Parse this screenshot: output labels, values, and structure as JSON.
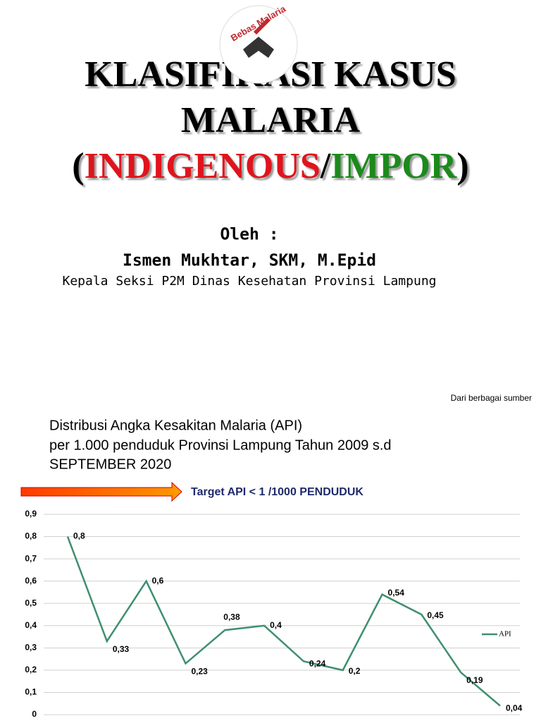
{
  "header": {
    "logo_text": "Bebas Malaria",
    "title_line1": "KLASIFIKASI KASUS",
    "title_line2": "MALARIA",
    "title_open": "(",
    "title_indigenous": "INDIGENOUS",
    "title_slash": "/",
    "title_impor": "IMPOR",
    "title_close": ")",
    "by": "Oleh :",
    "author": "Ismen Mukhtar, SKM, M.Epid",
    "position": "Kepala Seksi P2M Dinas Kesehatan Provinsi Lampung",
    "source": "Dari berbagai sumber"
  },
  "chart_data": {
    "type": "line",
    "title": [
      "Distribusi Angka Kesakitan Malaria (API)",
      "per 1.000 penduduk Provinsi Lampung Tahun 2009 s.d",
      "SEPTEMBER 2020"
    ],
    "annotation": "Target API < 1 /1000 PENDUDUK",
    "categories": [
      null,
      null,
      null,
      null,
      null,
      null,
      null,
      null,
      null,
      null,
      null,
      null
    ],
    "series": [
      {
        "name": "API",
        "color": "#3f8f6e",
        "values": [
          0.8,
          0.33,
          0.6,
          0.23,
          0.38,
          0.4,
          0.24,
          0.2,
          0.54,
          0.45,
          0.19,
          0.04
        ],
        "value_labels": [
          "0,8",
          "0,33",
          "0,6",
          "0,23",
          "0,38",
          "0,4",
          "0,24",
          "0,2",
          "0,54",
          "0,45",
          "0,19",
          "0,04"
        ]
      }
    ],
    "ylim": [
      0,
      0.9
    ],
    "yticks": [
      0,
      {
        "value": 0.1,
        "label": "0,1"
      },
      {
        "value": 0.2,
        "label": "0,2"
      },
      {
        "value": 0.3,
        "label": "0,3"
      },
      {
        "value": 0.4,
        "label": "0,4"
      },
      {
        "value": 0.5,
        "label": "0,5"
      },
      {
        "value": 0.6,
        "label": "0,6"
      },
      {
        "value": 0.7,
        "label": "0,7"
      },
      {
        "value": 0.8,
        "label": "0,8"
      },
      {
        "value": 0.9,
        "label": "0,9"
      }
    ],
    "grid": true,
    "legend": "right"
  }
}
